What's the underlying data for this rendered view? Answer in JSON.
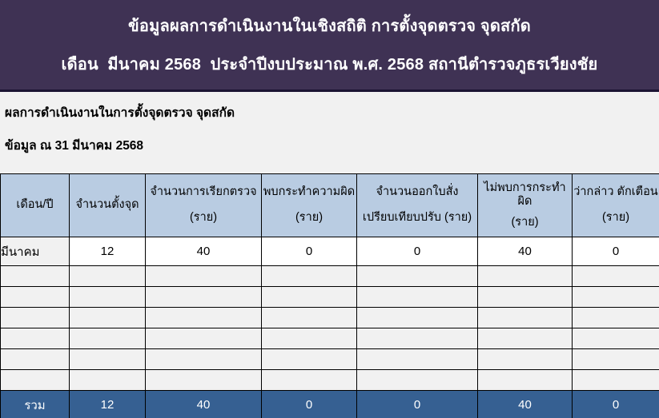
{
  "banner": {
    "line1": "ข้อมูลผลการดำเนินงานในเชิงสถิติ การตั้งจุดตรวจ จุดสกัด",
    "line2": "เดือน  มีนาคม 2568  ประจำปีงบประมาณ พ.ศ. 2568 สถานีตำรวจภูธรเวียงชัย"
  },
  "info": {
    "line1": "ผลการดำเนินงานในการตั้งจุดตรวจ จุดสกัด",
    "line2": "ข้อมูล ณ 31 มีนาคม 2568"
  },
  "table": {
    "columns": [
      {
        "line1": "เดือน/ปี",
        "line2": ""
      },
      {
        "line1": "จำนวนตั้งจุด",
        "line2": ""
      },
      {
        "line1": "จำนวนการเรียกตรวจ",
        "line2": "(ราย)"
      },
      {
        "line1": "พบกระทำความผิด",
        "line2": "(ราย)"
      },
      {
        "line1": "จำนวนออกใบสั่ง",
        "line2": "เปรียบเทียบปรับ (ราย)"
      },
      {
        "line1": "ไม่พบการกระทำผิด",
        "line2": "(ราย)"
      },
      {
        "line1": "ว่ากล่าว ตักเตือน",
        "line2": "(ราย)"
      }
    ],
    "rows": [
      {
        "month": "มีนาคม",
        "values": [
          "12",
          "40",
          "0",
          "0",
          "40",
          "0"
        ]
      }
    ],
    "empty_row_count": 6,
    "total": {
      "label": "รวม",
      "values": [
        "12",
        "40",
        "0",
        "0",
        "40",
        "0"
      ]
    }
  },
  "colors": {
    "banner_bg": "#3f3254",
    "banner_border": "#1b1433",
    "header_cell_bg": "#b9cce2",
    "total_row_bg": "#366092",
    "page_bg": "#f1f1f1",
    "data_cell_bg": "#ffffff",
    "grid_border": "#000000"
  }
}
